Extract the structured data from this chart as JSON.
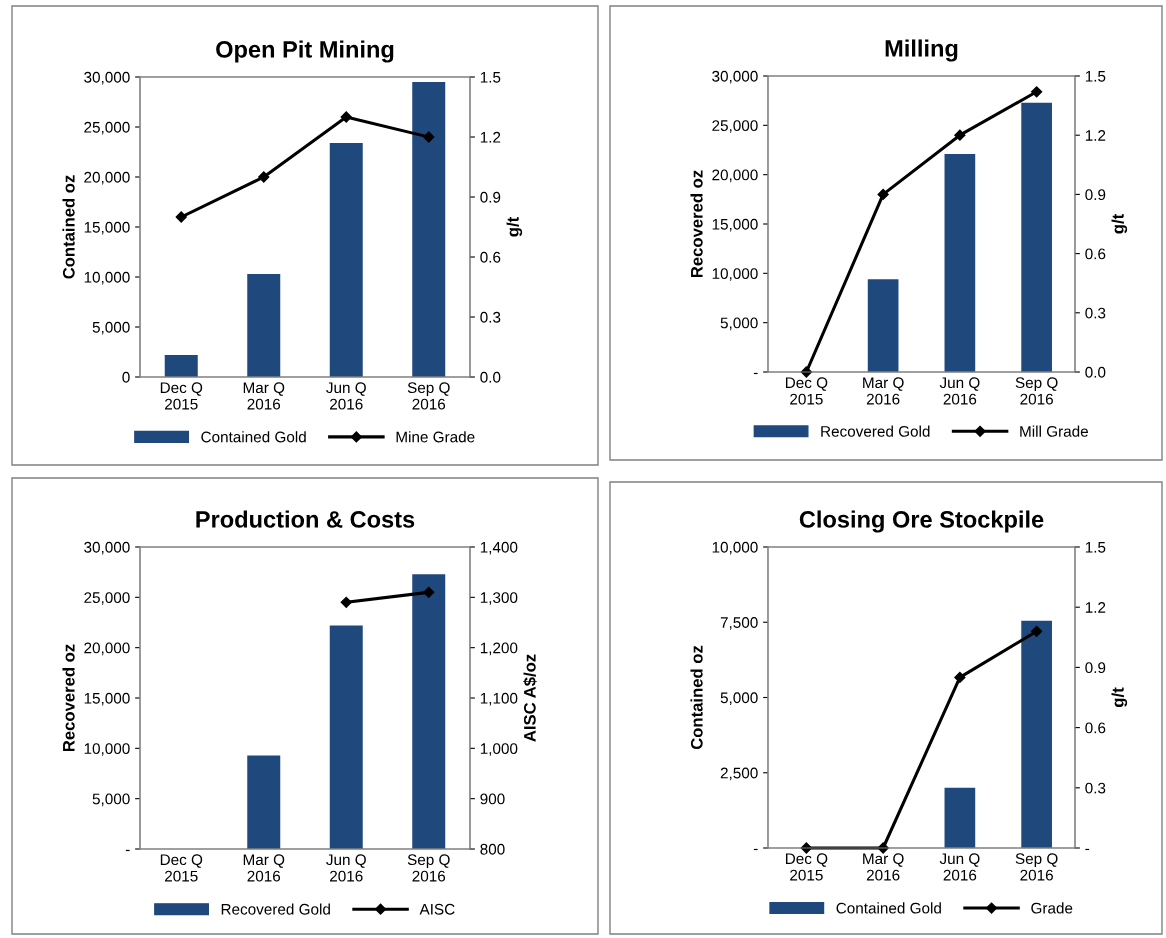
{
  "chart_data": [
    {
      "type": "bar",
      "title": "Open Pit Mining",
      "ylabel": "Contained oz",
      "y2label": "g/t",
      "categories": [
        "Dec Q\n2015",
        "Mar Q\n2016",
        "Jun Q\n2016",
        "Sep Q\n2016"
      ],
      "series": [
        {
          "name": "Contained Gold",
          "color": "#1f497d",
          "values": [
            2200,
            10300,
            23400,
            29500
          ]
        },
        {
          "name": "Mine Grade",
          "type": "line",
          "axis": "y2",
          "color": "#000000",
          "values": [
            0.8,
            1.0,
            1.3,
            1.2
          ]
        }
      ],
      "ylim": [
        0,
        30000
      ],
      "yticks": [
        {
          "value": 0,
          "label": "0"
        },
        {
          "value": 5000,
          "label": "5,000"
        },
        {
          "value": 10000,
          "label": "10,000"
        },
        {
          "value": 15000,
          "label": "15,000"
        },
        {
          "value": 20000,
          "label": "20,000"
        },
        {
          "value": 25000,
          "label": "25,000"
        },
        {
          "value": 30000,
          "label": "30,000"
        }
      ],
      "y2lim": [
        0,
        1.5
      ],
      "y2ticks": [
        {
          "value": 0,
          "label": "0.0"
        },
        0.3,
        0.6,
        0.9,
        1.2,
        1.5
      ],
      "grid": false,
      "legend": "bottom",
      "marker": "diamond",
      "line_style": "solid"
    },
    {
      "type": "bar",
      "title": "Milling",
      "ylabel": "Recovered oz",
      "y2label": "g/t",
      "categories": [
        "Dec Q\n2015",
        "Mar Q\n2016",
        "Jun Q\n2016",
        "Sep Q\n2016"
      ],
      "series": [
        {
          "name": "Recovered Gold",
          "color": "#1f497d",
          "values": [
            0,
            9400,
            22100,
            27300
          ]
        },
        {
          "name": "Mill Grade",
          "type": "line",
          "axis": "y2",
          "color": "#000000",
          "values": [
            0.0,
            0.9,
            1.2,
            1.42
          ]
        }
      ],
      "ylim": [
        0,
        30000
      ],
      "yticks": [
        {
          "value": 0,
          "label": "-"
        },
        {
          "value": 5000,
          "label": "5,000"
        },
        {
          "value": 10000,
          "label": "10,000"
        },
        {
          "value": 15000,
          "label": "15,000"
        },
        {
          "value": 20000,
          "label": "20,000"
        },
        {
          "value": 25000,
          "label": "25,000"
        },
        {
          "value": 30000,
          "label": "30,000"
        }
      ],
      "y2lim": [
        0,
        1.5
      ],
      "y2ticks": [
        {
          "value": 0,
          "label": "0.0"
        },
        0.3,
        0.6,
        0.9,
        1.2,
        1.5
      ],
      "grid": false,
      "legend": "bottom",
      "marker": "diamond",
      "line_style": "solid"
    },
    {
      "type": "bar",
      "title": "Production & Costs",
      "ylabel": "Recovered oz",
      "y2label": "AISC A$/oz",
      "categories": [
        "Dec Q\n2015",
        "Mar Q\n2016",
        "Jun Q\n2016",
        "Sep Q\n2016"
      ],
      "series": [
        {
          "name": "Recovered Gold",
          "color": "#1f497d",
          "values": [
            0,
            9300,
            22200,
            27300
          ]
        },
        {
          "name": "AISC",
          "type": "line",
          "axis": "y2",
          "color": "#000000",
          "values": [
            null,
            null,
            1290,
            1310
          ]
        }
      ],
      "ylim": [
        0,
        30000
      ],
      "yticks": [
        {
          "value": 0,
          "label": "-"
        },
        {
          "value": 5000,
          "label": "5,000"
        },
        {
          "value": 10000,
          "label": "10,000"
        },
        {
          "value": 15000,
          "label": "15,000"
        },
        {
          "value": 20000,
          "label": "20,000"
        },
        {
          "value": 25000,
          "label": "25,000"
        },
        {
          "value": 30000,
          "label": "30,000"
        }
      ],
      "y2lim": [
        800,
        1400
      ],
      "y2ticks": [
        800,
        900,
        {
          "value": 1000,
          "label": "1,000"
        },
        {
          "value": 1100,
          "label": "1,100"
        },
        {
          "value": 1200,
          "label": "1,200"
        },
        {
          "value": 1300,
          "label": "1,300"
        },
        {
          "value": 1400,
          "label": "1,400"
        }
      ],
      "grid": false,
      "legend": "bottom",
      "marker": "diamond",
      "line_style": "solid"
    },
    {
      "type": "bar",
      "title": "Closing Ore Stockpile",
      "ylabel": "Contained oz",
      "y2label": "g/t",
      "categories": [
        "Dec Q\n2015",
        "Mar Q\n2016",
        "Jun Q\n2016",
        "Sep Q\n2016"
      ],
      "series": [
        {
          "name": "Contained Gold",
          "color": "#1f497d",
          "values": [
            0,
            0,
            2000,
            7550
          ]
        },
        {
          "name": "Grade",
          "type": "line",
          "axis": "y2",
          "color": "#000000",
          "values": [
            0.0,
            0.0,
            0.85,
            1.08
          ]
        }
      ],
      "ylim": [
        0,
        10000
      ],
      "yticks": [
        {
          "value": 0,
          "label": "-"
        },
        {
          "value": 2500,
          "label": "2,500"
        },
        {
          "value": 5000,
          "label": "5,000"
        },
        {
          "value": 7500,
          "label": "7,500"
        },
        {
          "value": 10000,
          "label": "10,000"
        }
      ],
      "y2lim": [
        0,
        1.5
      ],
      "y2ticks": [
        {
          "value": 0,
          "label": "-"
        },
        0.3,
        0.6,
        0.9,
        1.2,
        1.5
      ],
      "grid": false,
      "legend": "bottom",
      "marker": "diamond",
      "line_style": "solid"
    }
  ]
}
